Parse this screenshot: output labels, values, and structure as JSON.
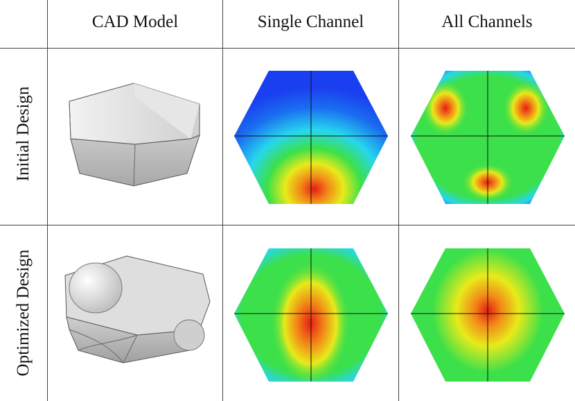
{
  "table": {
    "columns": [
      "CAD Model",
      "Single Channel",
      "All Channels"
    ],
    "rows": [
      "Initial Design",
      "Optimized Design"
    ]
  },
  "colors": {
    "blue": "#1a3ff0",
    "cyan": "#27d6ee",
    "green": "#3be04a",
    "yellow": "#e8ea1a",
    "orange": "#f28a18",
    "red": "#e51e14",
    "model_gray": "#d9d9d9"
  }
}
